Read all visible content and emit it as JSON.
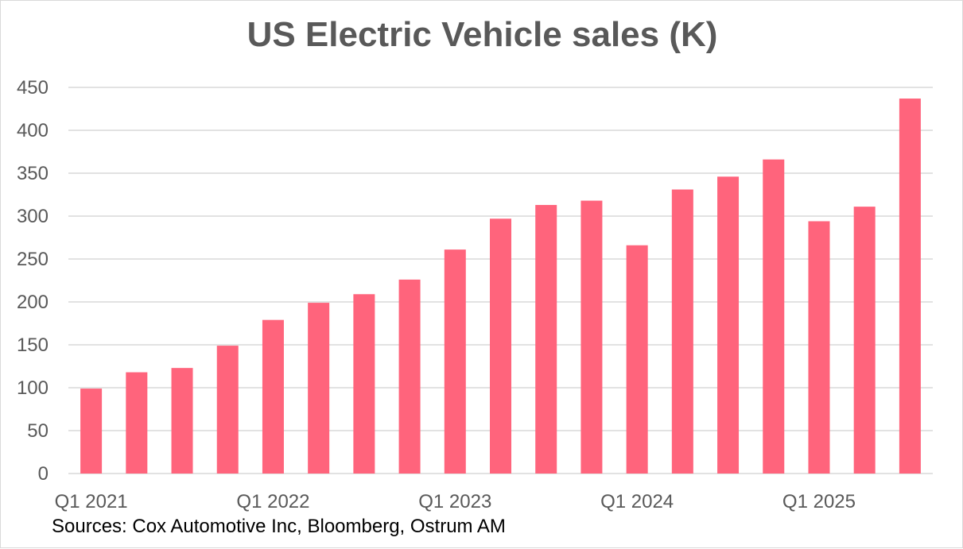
{
  "chart_data": {
    "type": "bar",
    "title": "US Electric Vehicle sales (K)",
    "source": "Sources: Cox Automotive Inc, Bloomberg, Ostrum AM",
    "categories": [
      "Q1 2021",
      "Q2 2021",
      "Q3 2021",
      "Q4 2021",
      "Q1 2022",
      "Q2 2022",
      "Q3 2022",
      "Q4 2022",
      "Q1 2023",
      "Q2 2023",
      "Q3 2023",
      "Q4 2023",
      "Q1 2024",
      "Q2 2024",
      "Q3 2024",
      "Q4 2024",
      "Q1 2025",
      "Q2 2025",
      "Q3 2025"
    ],
    "x_tick_labels": [
      "Q1 2021",
      "Q1 2022",
      "Q1 2023",
      "Q1 2024",
      "Q1 2025"
    ],
    "values": [
      99,
      118,
      123,
      149,
      179,
      199,
      209,
      226,
      261,
      297,
      313,
      318,
      266,
      331,
      346,
      366,
      294,
      311,
      437
    ],
    "ylim": [
      0,
      450
    ],
    "y_ticks": [
      0,
      50,
      100,
      150,
      200,
      250,
      300,
      350,
      400,
      450
    ],
    "xlabel": "",
    "ylabel": "",
    "grid": true,
    "bar_color": "#ff647c",
    "grid_color": "#d9d9d9"
  }
}
